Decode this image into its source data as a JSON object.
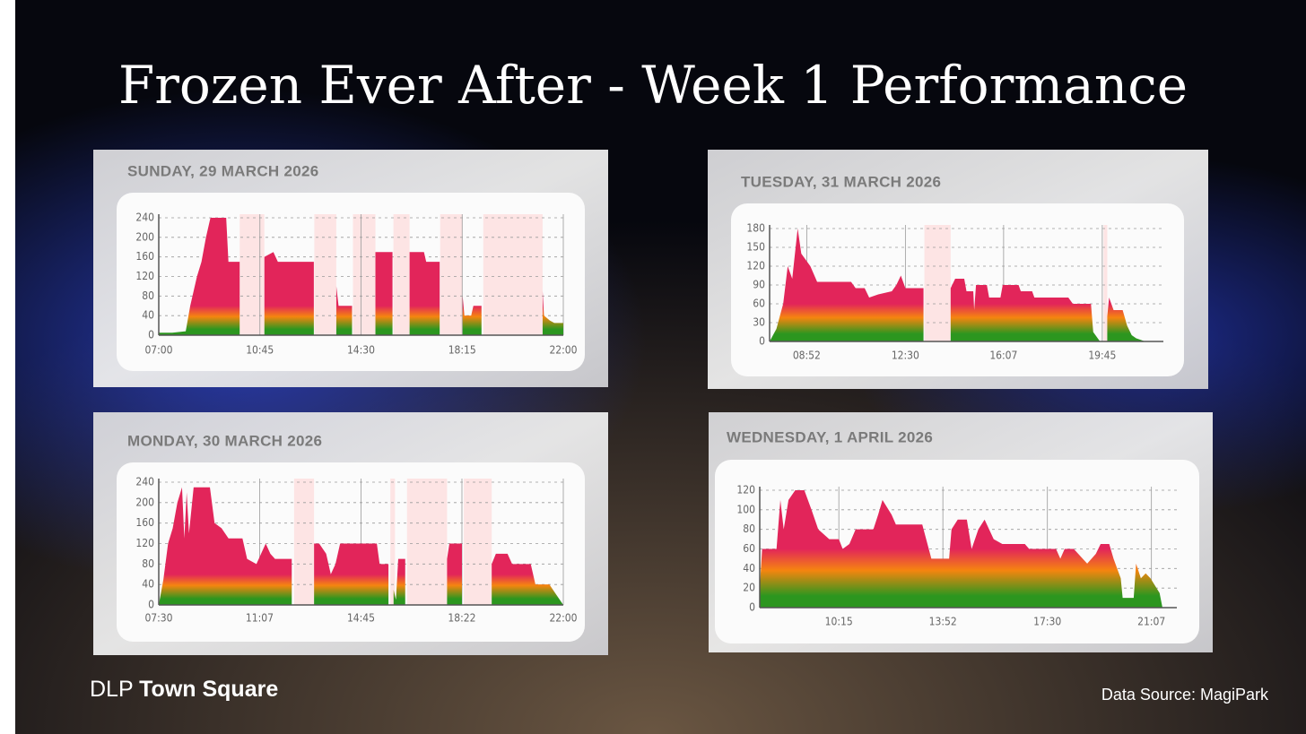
{
  "title": "Frozen Ever After - Week 1 Performance",
  "brand": {
    "prefix": "DLP",
    "name": "Town Square"
  },
  "source": "Data Source: MagiPark",
  "chart_data": [
    {
      "type": "area",
      "title": "SUNDAY, 29 MARCH 2026",
      "x": [
        "07:00",
        "07:30",
        "08:00",
        "08:10",
        "08:25",
        "08:35",
        "08:45",
        "08:55",
        "09:30",
        "09:35",
        "10:00",
        "10:05",
        "10:55",
        "11:15",
        "11:25",
        "12:45",
        "12:50",
        "13:35",
        "13:40",
        "14:10",
        "14:15",
        "15:02",
        "15:40",
        "15:45",
        "16:18",
        "16:50",
        "16:55",
        "17:25",
        "17:30",
        "18:16",
        "18:20",
        "18:35",
        "18:40",
        "18:58",
        "19:02",
        "21:14",
        "21:17",
        "21:30",
        "21:40",
        "22:00"
      ],
      "values": [
        5,
        5,
        8,
        60,
        120,
        150,
        200,
        240,
        240,
        150,
        150,
        null,
        160,
        170,
        150,
        150,
        null,
        100,
        60,
        60,
        null,
        170,
        170,
        null,
        170,
        170,
        150,
        150,
        null,
        80,
        40,
        40,
        60,
        60,
        null,
        90,
        40,
        30,
        25,
        25
      ],
      "closures": [
        [
          "10:00",
          "10:55"
        ],
        [
          "12:46",
          "13:35"
        ],
        [
          "14:12",
          "15:02"
        ],
        [
          "15:42",
          "16:18"
        ],
        [
          "17:26",
          "18:16"
        ],
        [
          "19:02",
          "21:14"
        ]
      ],
      "xlim": [
        "07:00",
        "22:00"
      ],
      "xticks": [
        "07:00",
        "10:45",
        "14:30",
        "18:15",
        "22:00"
      ],
      "ylim": [
        0,
        240
      ],
      "yticks": [
        0,
        40,
        80,
        120,
        160,
        200,
        240
      ],
      "grid": true,
      "colors": [
        "#e2255a",
        "#f5850f",
        "#2c961f"
      ],
      "closure_color": "#fde4e4"
    },
    {
      "type": "area",
      "title": "MONDAY, 30 MARCH 2026",
      "x": [
        "07:30",
        "07:40",
        "07:50",
        "08:00",
        "08:10",
        "08:20",
        "08:25",
        "08:30",
        "08:35",
        "08:45",
        "09:20",
        "09:30",
        "09:45",
        "10:00",
        "10:30",
        "10:40",
        "11:00",
        "11:10",
        "11:20",
        "11:30",
        "11:40",
        "12:16",
        "12:20",
        "13:04",
        "13:15",
        "13:30",
        "13:40",
        "13:50",
        "14:00",
        "15:19",
        "15:25",
        "15:44",
        "15:48",
        "15:55",
        "16:00",
        "16:05",
        "16:20",
        "16:24",
        "17:50",
        "17:55",
        "18:22",
        "18:25",
        "19:26",
        "19:35",
        "20:00",
        "20:10",
        "20:50",
        "21:00",
        "21:30",
        "21:45",
        "22:00"
      ],
      "values": [
        0,
        50,
        120,
        150,
        200,
        230,
        130,
        220,
        140,
        230,
        230,
        160,
        150,
        130,
        130,
        90,
        80,
        100,
        120,
        100,
        90,
        90,
        null,
        120,
        120,
        100,
        60,
        80,
        120,
        120,
        80,
        80,
        null,
        30,
        10,
        90,
        90,
        null,
        90,
        120,
        120,
        null,
        80,
        100,
        100,
        80,
        80,
        40,
        40,
        20,
        0
      ],
      "closures": [
        [
          "12:21",
          "13:04"
        ],
        [
          "15:48",
          "15:58"
        ],
        [
          "16:24",
          "17:50"
        ],
        [
          "18:26",
          "19:26"
        ]
      ],
      "xlim": [
        "07:30",
        "22:00"
      ],
      "xticks": [
        "07:30",
        "11:07",
        "14:45",
        "18:22",
        "22:00"
      ],
      "ylim": [
        0,
        240
      ],
      "yticks": [
        0,
        40,
        80,
        120,
        160,
        200,
        240
      ],
      "grid": true,
      "colors": [
        "#e2255a",
        "#f5850f",
        "#2c961f"
      ],
      "closure_color": "#fde4e4"
    },
    {
      "type": "area",
      "title": "TUESDAY, 31 MARCH 2026",
      "x": [
        "07:30",
        "07:45",
        "08:00",
        "08:10",
        "08:20",
        "08:32",
        "08:40",
        "09:00",
        "09:15",
        "10:30",
        "10:40",
        "11:00",
        "11:10",
        "11:30",
        "12:00",
        "12:10",
        "12:20",
        "12:30",
        "13:10",
        "13:12",
        "14:10",
        "14:20",
        "14:40",
        "14:45",
        "15:00",
        "15:02",
        "15:06",
        "15:30",
        "15:35",
        "16:00",
        "16:05",
        "16:40",
        "16:45",
        "17:10",
        "17:15",
        "18:30",
        "18:40",
        "19:20",
        "19:25",
        "19:40",
        "19:48",
        "19:56",
        "20:00",
        "20:10",
        "20:30",
        "20:40",
        "20:50",
        "21:00",
        "21:20"
      ],
      "values": [
        0,
        20,
        60,
        120,
        100,
        180,
        140,
        120,
        95,
        95,
        85,
        85,
        70,
        75,
        80,
        90,
        105,
        85,
        85,
        null,
        85,
        100,
        100,
        80,
        80,
        50,
        90,
        90,
        70,
        70,
        90,
        90,
        80,
        80,
        70,
        70,
        60,
        60,
        15,
        0,
        null,
        40,
        70,
        50,
        50,
        25,
        10,
        5,
        0
      ],
      "closures": [
        [
          "13:12",
          "14:10"
        ],
        [
          "19:48",
          "19:56"
        ]
      ],
      "xlim": [
        "07:30",
        "22:00"
      ],
      "xticks": [
        "08:52",
        "12:30",
        "16:07",
        "19:45"
      ],
      "ylim": [
        0,
        180
      ],
      "yticks": [
        0,
        30,
        60,
        90,
        120,
        150,
        180
      ],
      "grid": true,
      "colors": [
        "#e2255a",
        "#f5850f",
        "#2c961f"
      ],
      "closure_color": "#fde4e4"
    },
    {
      "type": "area",
      "title": "WEDNESDAY, 1 APRIL 2026",
      "x": [
        "07:30",
        "07:35",
        "08:05",
        "08:13",
        "08:20",
        "08:30",
        "08:44",
        "09:03",
        "09:18",
        "09:32",
        "09:55",
        "10:15",
        "10:23",
        "10:37",
        "10:50",
        "11:27",
        "11:37",
        "11:46",
        "12:05",
        "12:14",
        "13:09",
        "13:28",
        "14:05",
        "14:10",
        "14:23",
        "14:42",
        "14:52",
        "15:06",
        "15:19",
        "15:38",
        "15:56",
        "16:43",
        "16:52",
        "17:48",
        "17:57",
        "18:06",
        "18:25",
        "18:53",
        "19:11",
        "19:21",
        "19:39",
        "19:48",
        "20:03",
        "20:07",
        "20:30",
        "20:35",
        "20:45",
        "20:55",
        "21:05",
        "21:24",
        "21:30"
      ],
      "values": [
        20,
        60,
        60,
        110,
        80,
        110,
        120,
        120,
        100,
        80,
        70,
        70,
        60,
        65,
        80,
        80,
        95,
        110,
        95,
        85,
        85,
        50,
        50,
        80,
        90,
        90,
        60,
        80,
        90,
        70,
        65,
        65,
        60,
        60,
        50,
        60,
        60,
        45,
        55,
        65,
        65,
        50,
        30,
        10,
        10,
        45,
        30,
        35,
        30,
        15,
        0
      ],
      "xlim": [
        "07:30",
        "22:00"
      ],
      "xticks": [
        "10:15",
        "13:52",
        "17:30",
        "21:07"
      ],
      "ylim": [
        0,
        120
      ],
      "yticks": [
        0,
        20,
        40,
        60,
        80,
        100,
        120
      ],
      "grid": true,
      "colors": [
        "#e2255a",
        "#f5850f",
        "#2c961f"
      ]
    }
  ]
}
